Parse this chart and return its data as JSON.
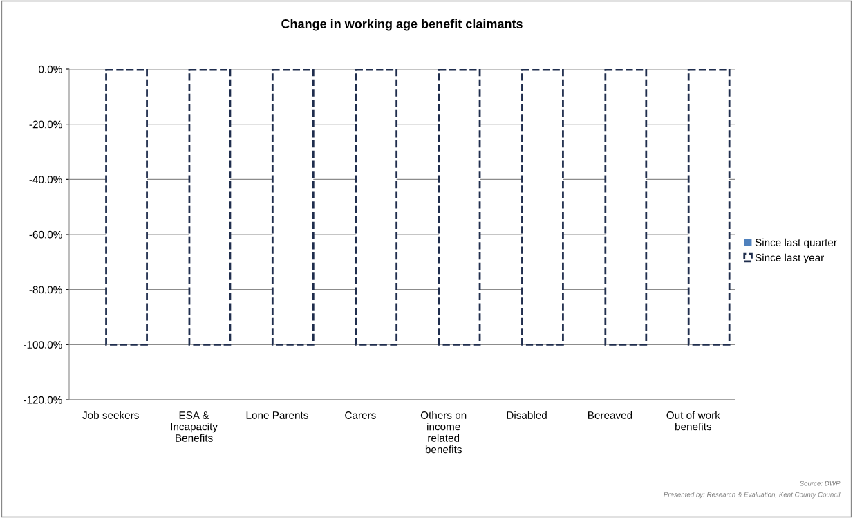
{
  "chart_data": {
    "type": "bar",
    "title": "Change in working age benefit claimants",
    "categories": [
      "Job seekers",
      "ESA &\nIncapacity\nBenefits",
      "Lone Parents",
      "Carers",
      "Others on\nincome\nrelated\nbenefits",
      "Disabled",
      "Bereaved",
      "Out of work\nbenefits"
    ],
    "series": [
      {
        "name": "Since last quarter",
        "color": "#4f81bd",
        "values": [
          0,
          0,
          0,
          0,
          0,
          0,
          0,
          0
        ]
      },
      {
        "name": "Since last year",
        "color": "#1f2d4d",
        "line_style": "dashed",
        "values": [
          -100,
          -100,
          -100,
          -100,
          -100,
          -100,
          -100,
          -100
        ]
      }
    ],
    "ylim": [
      -120,
      0
    ],
    "yticks": [
      {
        "value": 0,
        "label": "0.0%"
      },
      {
        "value": -20,
        "label": "-20.0%"
      },
      {
        "value": -40,
        "label": "-40.0%"
      },
      {
        "value": -60,
        "label": "-60.0%"
      },
      {
        "value": -80,
        "label": "-80.0%"
      },
      {
        "value": -100,
        "label": "-100.0%"
      },
      {
        "value": -120,
        "label": "-120.0%"
      }
    ],
    "grid": "y",
    "legend": "right",
    "annotations": [
      "Source: DWP",
      "Presented by: Research & Evaluation, Kent County Council"
    ]
  }
}
